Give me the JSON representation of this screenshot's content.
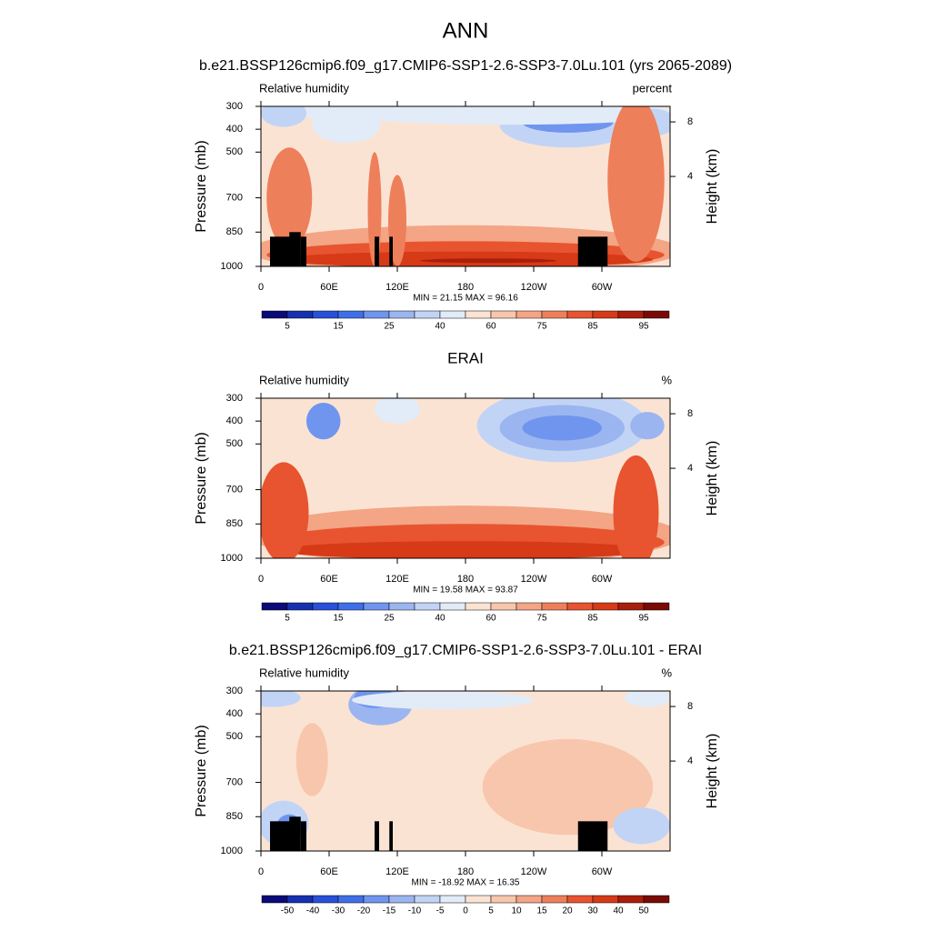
{
  "title": "ANN",
  "chart_data": [
    {
      "type": "contour",
      "title": "b.e21.BSSP126cmip6.f09_g17.CMIP6-SSP1-2.6-SSP3-7.0Lu.101 (yrs 2065-2089)",
      "left_string": "Relative humidity",
      "right_string": "percent",
      "y_label": "Pressure (mb)",
      "y2_label": "Height (km)",
      "xlim": [
        0,
        360
      ],
      "xticks": [
        0,
        {
          "value": 60,
          "label": "60E"
        },
        {
          "value": 120,
          "label": "120E"
        },
        180,
        {
          "value": 240,
          "label": "120W"
        },
        {
          "value": 300,
          "label": "60W"
        }
      ],
      "ylim": [
        1000,
        300
      ],
      "yticks": [
        300,
        400,
        500,
        700,
        850,
        1000
      ],
      "y2ticks": [
        8,
        4
      ],
      "stats": "MIN =  21.15  MAX =  96.16",
      "colorbar": {
        "levels": [
          5,
          15,
          25,
          40,
          60,
          75,
          85,
          95
        ],
        "colors": [
          "#0a0a78",
          "#1730b0",
          "#2850d8",
          "#3f6fe8",
          "#6f95ee",
          "#9bb5f0",
          "#c2d4f5",
          "#e2ebf8",
          "#fbe3d3",
          "#f8c6ac",
          "#f3a585",
          "#ee7f5b",
          "#e8542f",
          "#d63a17",
          "#aa1e0c",
          "#7a0a05"
        ]
      }
    },
    {
      "type": "contour",
      "title": "ERAI",
      "left_string": "Relative humidity",
      "right_string": "%",
      "y_label": "Pressure (mb)",
      "y2_label": "Height (km)",
      "xlim": [
        0,
        360
      ],
      "xticks": [
        0,
        {
          "value": 60,
          "label": "60E"
        },
        {
          "value": 120,
          "label": "120E"
        },
        180,
        {
          "value": 240,
          "label": "120W"
        },
        {
          "value": 300,
          "label": "60W"
        }
      ],
      "ylim": [
        1000,
        300
      ],
      "yticks": [
        300,
        400,
        500,
        700,
        850,
        1000
      ],
      "y2ticks": [
        8,
        4
      ],
      "stats": "MIN =  19.58  MAX =  93.87",
      "colorbar": {
        "levels": [
          5,
          15,
          25,
          40,
          60,
          75,
          85,
          95
        ],
        "colors": [
          "#0a0a78",
          "#1730b0",
          "#2850d8",
          "#3f6fe8",
          "#6f95ee",
          "#9bb5f0",
          "#c2d4f5",
          "#e2ebf8",
          "#fbe3d3",
          "#f8c6ac",
          "#f3a585",
          "#ee7f5b",
          "#e8542f",
          "#d63a17",
          "#aa1e0c",
          "#7a0a05"
        ]
      }
    },
    {
      "type": "contour",
      "title": "b.e21.BSSP126cmip6.f09_g17.CMIP6-SSP1-2.6-SSP3-7.0Lu.101 - ERAI",
      "left_string": "Relative humidity",
      "right_string": "%",
      "y_label": "Pressure (mb)",
      "y2_label": "Height (km)",
      "xlim": [
        0,
        360
      ],
      "xticks": [
        0,
        {
          "value": 60,
          "label": "60E"
        },
        {
          "value": 120,
          "label": "120E"
        },
        180,
        {
          "value": 240,
          "label": "120W"
        },
        {
          "value": 300,
          "label": "60W"
        }
      ],
      "ylim": [
        1000,
        300
      ],
      "yticks": [
        300,
        400,
        500,
        700,
        850,
        1000
      ],
      "y2ticks": [
        8,
        4
      ],
      "stats": "MIN = -18.92  MAX =  16.35",
      "colorbar": {
        "levels": [
          -50,
          -40,
          -30,
          -20,
          -15,
          -10,
          -5,
          0,
          5,
          10,
          15,
          20,
          30,
          40,
          50
        ],
        "colors": [
          "#0a0a78",
          "#1730b0",
          "#2850d8",
          "#3f6fe8",
          "#6f95ee",
          "#9bb5f0",
          "#c2d4f5",
          "#e2ebf8",
          "#fbe3d3",
          "#f8c6ac",
          "#f3a585",
          "#ee7f5b",
          "#e8542f",
          "#d63a17",
          "#aa1e0c",
          "#7a0a05"
        ]
      }
    }
  ]
}
